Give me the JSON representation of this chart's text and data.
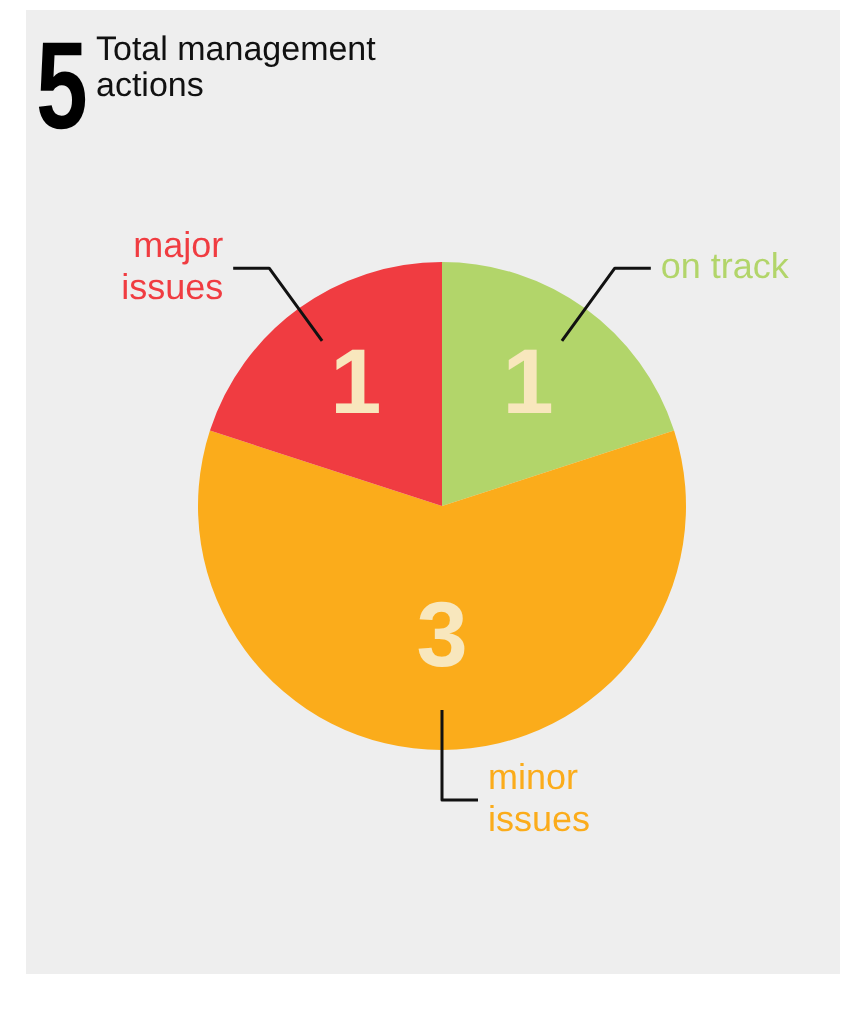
{
  "chart_data": {
    "type": "pie",
    "title": "5",
    "subtitle": "Total management actions",
    "categories": [
      "on track",
      "minor issues",
      "major issues"
    ],
    "values": [
      1,
      3,
      1
    ],
    "colors": [
      "#b2d56a",
      "#fbac1b",
      "#f03c41"
    ],
    "data_labels": true,
    "legend": false
  }
}
